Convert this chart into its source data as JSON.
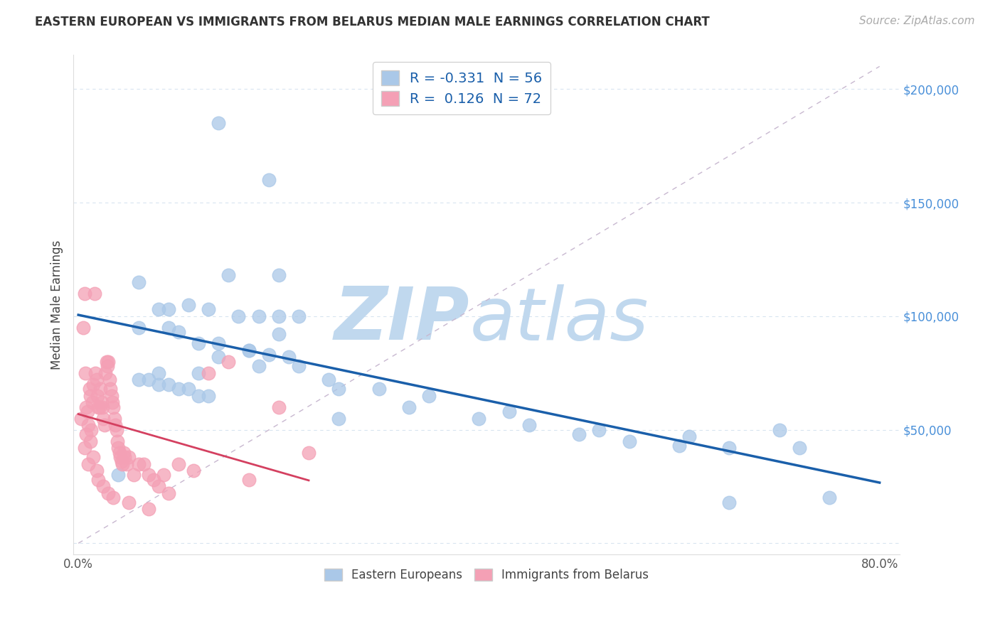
{
  "title": "EASTERN EUROPEAN VS IMMIGRANTS FROM BELARUS MEDIAN MALE EARNINGS CORRELATION CHART",
  "source": "Source: ZipAtlas.com",
  "ylabel": "Median Male Earnings",
  "xlim_min": -0.005,
  "xlim_max": 0.82,
  "ylim_min": -5000,
  "ylim_max": 215000,
  "blue_R": -0.331,
  "blue_N": 56,
  "pink_R": 0.126,
  "pink_N": 72,
  "blue_color": "#aac8e8",
  "pink_color": "#f4a0b5",
  "blue_line_color": "#1a5faa",
  "pink_line_color": "#d44060",
  "ref_line_color": "#c8b8d0",
  "watermark_zip": "ZIP",
  "watermark_atlas": "atlas",
  "watermark_color_zip": "#c0d8ee",
  "watermark_color_atlas": "#c0d8ee",
  "legend_label_blue": "Eastern Europeans",
  "legend_label_pink": "Immigrants from Belarus",
  "blue_x": [
    0.14,
    0.19,
    0.06,
    0.15,
    0.2,
    0.08,
    0.09,
    0.11,
    0.13,
    0.16,
    0.18,
    0.2,
    0.22,
    0.06,
    0.09,
    0.1,
    0.12,
    0.14,
    0.17,
    0.19,
    0.21,
    0.08,
    0.12,
    0.04,
    0.06,
    0.07,
    0.08,
    0.09,
    0.1,
    0.11,
    0.12,
    0.13,
    0.25,
    0.3,
    0.35,
    0.4,
    0.45,
    0.5,
    0.55,
    0.6,
    0.65,
    0.7,
    0.75,
    0.14,
    0.18,
    0.22,
    0.26,
    0.33,
    0.43,
    0.52,
    0.61,
    0.72,
    0.65,
    0.26,
    0.17,
    0.2
  ],
  "blue_y": [
    185000,
    160000,
    115000,
    118000,
    118000,
    103000,
    103000,
    105000,
    103000,
    100000,
    100000,
    100000,
    100000,
    95000,
    95000,
    93000,
    88000,
    88000,
    85000,
    83000,
    82000,
    75000,
    75000,
    30000,
    72000,
    72000,
    70000,
    70000,
    68000,
    68000,
    65000,
    65000,
    72000,
    68000,
    65000,
    55000,
    52000,
    48000,
    45000,
    43000,
    42000,
    50000,
    20000,
    82000,
    78000,
    78000,
    68000,
    60000,
    58000,
    50000,
    47000,
    42000,
    18000,
    55000,
    85000,
    92000
  ],
  "pink_x": [
    0.003,
    0.005,
    0.006,
    0.007,
    0.008,
    0.009,
    0.01,
    0.011,
    0.012,
    0.013,
    0.014,
    0.015,
    0.016,
    0.017,
    0.018,
    0.019,
    0.02,
    0.021,
    0.022,
    0.023,
    0.024,
    0.025,
    0.026,
    0.027,
    0.028,
    0.029,
    0.03,
    0.031,
    0.032,
    0.033,
    0.034,
    0.035,
    0.036,
    0.037,
    0.038,
    0.039,
    0.04,
    0.041,
    0.042,
    0.043,
    0.044,
    0.045,
    0.046,
    0.048,
    0.05,
    0.055,
    0.06,
    0.065,
    0.07,
    0.075,
    0.08,
    0.085,
    0.09,
    0.1,
    0.115,
    0.13,
    0.15,
    0.17,
    0.2,
    0.23,
    0.006,
    0.008,
    0.01,
    0.012,
    0.015,
    0.018,
    0.02,
    0.025,
    0.03,
    0.035,
    0.05,
    0.07
  ],
  "pink_y": [
    55000,
    95000,
    110000,
    75000,
    60000,
    58000,
    52000,
    68000,
    65000,
    50000,
    62000,
    70000,
    110000,
    75000,
    72000,
    65000,
    60000,
    60000,
    68000,
    62000,
    60000,
    55000,
    52000,
    75000,
    80000,
    78000,
    80000,
    72000,
    68000,
    65000,
    62000,
    60000,
    55000,
    52000,
    50000,
    45000,
    42000,
    40000,
    38000,
    36000,
    35000,
    40000,
    38000,
    35000,
    38000,
    30000,
    35000,
    35000,
    30000,
    28000,
    25000,
    30000,
    22000,
    35000,
    32000,
    75000,
    80000,
    28000,
    60000,
    40000,
    42000,
    48000,
    35000,
    45000,
    38000,
    32000,
    28000,
    25000,
    22000,
    20000,
    18000,
    15000
  ],
  "yticks": [
    0,
    50000,
    100000,
    150000,
    200000
  ],
  "ytick_labels": [
    "",
    "$50,000",
    "$100,000",
    "$150,000",
    "$200,000"
  ],
  "xticks": [
    0.0,
    0.2,
    0.4,
    0.6,
    0.8
  ],
  "xtick_labels": [
    "0.0%",
    "",
    "",
    "",
    "80.0%"
  ],
  "tick_color": "#4a90d9",
  "grid_color": "#d8e4f0",
  "title_fontsize": 12,
  "source_fontsize": 11,
  "tick_fontsize": 12
}
